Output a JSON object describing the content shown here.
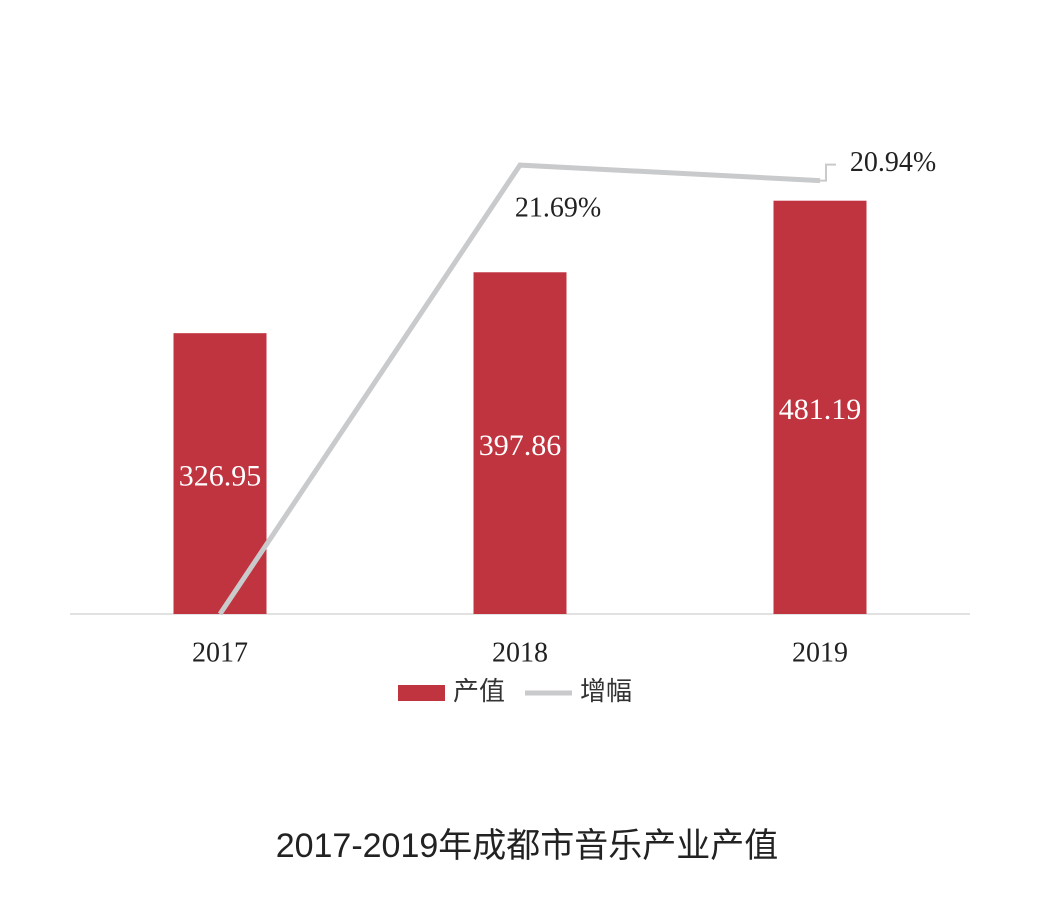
{
  "chart_data": {
    "type": "bar",
    "title": "2017-2019年成都市音乐产业产值",
    "categories": [
      "2017",
      "2018",
      "2019"
    ],
    "series": [
      {
        "name": "产值",
        "type": "bar",
        "color": "#c0343f",
        "values": [
          326.95,
          397.86,
          481.19
        ]
      },
      {
        "name": "增幅",
        "type": "line",
        "axis": "y2",
        "color": "#c9cacc",
        "values": [
          0,
          21.69,
          20.94
        ],
        "value_labels": [
          null,
          "21.69%",
          "20.94%"
        ]
      }
    ],
    "ylim": [
      0,
      560
    ],
    "y2lim": [
      0,
      23.24
    ],
    "legend": "bottom"
  }
}
